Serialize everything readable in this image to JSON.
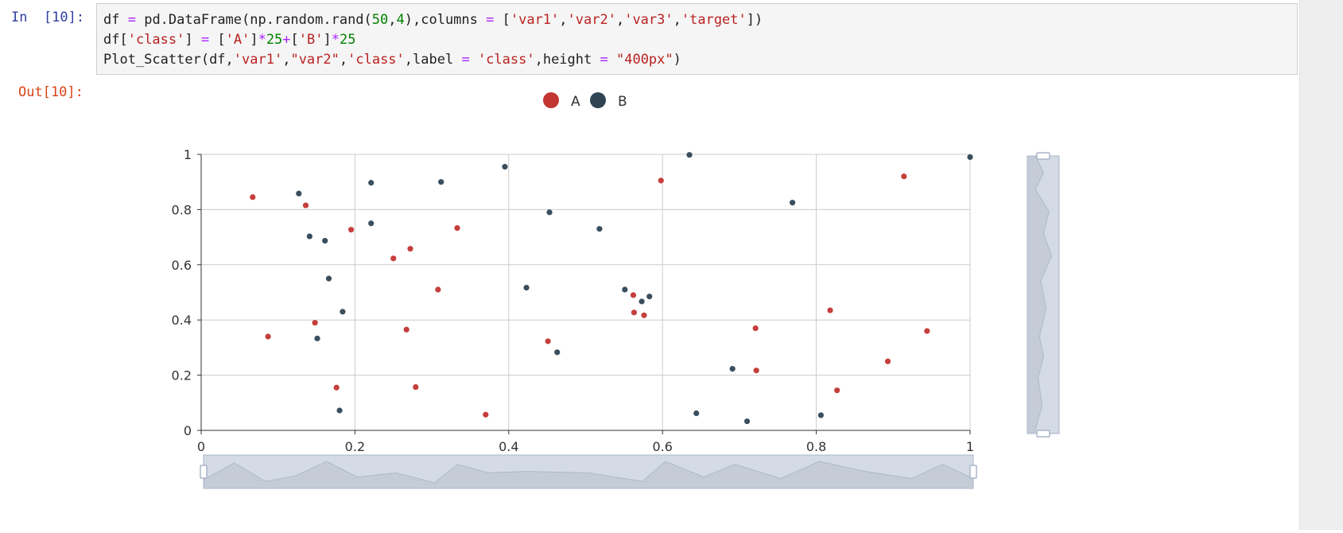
{
  "cell": {
    "in_prompt": "In  [10]:",
    "out_prompt": "Out[10]:",
    "code_lines": [
      [
        {
          "t": "df ",
          "c": "plain"
        },
        {
          "t": "=",
          "c": "op"
        },
        {
          "t": " pd.DataFrame(np.random.rand(",
          "c": "plain"
        },
        {
          "t": "50",
          "c": "num"
        },
        {
          "t": ",",
          "c": "plain"
        },
        {
          "t": "4",
          "c": "num"
        },
        {
          "t": "),columns ",
          "c": "plain"
        },
        {
          "t": "=",
          "c": "op"
        },
        {
          "t": " [",
          "c": "plain"
        },
        {
          "t": "'var1'",
          "c": "str"
        },
        {
          "t": ",",
          "c": "plain"
        },
        {
          "t": "'var2'",
          "c": "str"
        },
        {
          "t": ",",
          "c": "plain"
        },
        {
          "t": "'var3'",
          "c": "str"
        },
        {
          "t": ",",
          "c": "plain"
        },
        {
          "t": "'target'",
          "c": "str"
        },
        {
          "t": "])",
          "c": "plain"
        }
      ],
      [
        {
          "t": "df[",
          "c": "plain"
        },
        {
          "t": "'class'",
          "c": "str"
        },
        {
          "t": "] ",
          "c": "plain"
        },
        {
          "t": "=",
          "c": "op"
        },
        {
          "t": " [",
          "c": "plain"
        },
        {
          "t": "'A'",
          "c": "str"
        },
        {
          "t": "]",
          "c": "plain"
        },
        {
          "t": "*",
          "c": "op"
        },
        {
          "t": "25",
          "c": "num"
        },
        {
          "t": "+",
          "c": "op"
        },
        {
          "t": "[",
          "c": "plain"
        },
        {
          "t": "'B'",
          "c": "str"
        },
        {
          "t": "]",
          "c": "plain"
        },
        {
          "t": "*",
          "c": "op"
        },
        {
          "t": "25",
          "c": "num"
        }
      ],
      [
        {
          "t": "Plot_Scatter",
          "c": "plain"
        },
        {
          "t": "(df,",
          "c": "plain"
        },
        {
          "t": "'var1'",
          "c": "str"
        },
        {
          "t": ",",
          "c": "plain"
        },
        {
          "t": "\"var2\"",
          "c": "str"
        },
        {
          "t": ",",
          "c": "plain"
        },
        {
          "t": "'class'",
          "c": "str"
        },
        {
          "t": ",label ",
          "c": "plain"
        },
        {
          "t": "=",
          "c": "op"
        },
        {
          "t": " ",
          "c": "plain"
        },
        {
          "t": "'class'",
          "c": "str"
        },
        {
          "t": ",height ",
          "c": "plain"
        },
        {
          "t": "=",
          "c": "op"
        },
        {
          "t": " ",
          "c": "plain"
        },
        {
          "t": "\"400px\"",
          "c": "str"
        },
        {
          "t": ")",
          "c": "plain"
        }
      ]
    ]
  },
  "colors": {
    "series_A": "#c23531",
    "series_B": "#2f4554",
    "grid": "#cccccc",
    "axis": "#333333",
    "zoom_fill": "#d4dbe5",
    "zoom_border": "#aab6c7"
  },
  "chart_data": {
    "type": "scatter",
    "legend": {
      "placement": "top-center",
      "items": [
        "A",
        "B"
      ]
    },
    "x_ticks": [
      "0",
      "0.2",
      "0.4",
      "0.6",
      "0.8",
      "1"
    ],
    "y_ticks": [
      "0",
      "0.2",
      "0.4",
      "0.6",
      "0.8",
      "1"
    ],
    "xlim": [
      0,
      1
    ],
    "ylim": [
      0,
      1
    ],
    "grid": true,
    "dataZoom": {
      "x_slider": true,
      "y_slider": true,
      "start": 0,
      "end": 100
    },
    "series": [
      {
        "name": "A",
        "points": [
          [
            0.067,
            0.845
          ],
          [
            0.087,
            0.34
          ],
          [
            0.136,
            0.815
          ],
          [
            0.148,
            0.39
          ],
          [
            0.176,
            0.155
          ],
          [
            0.195,
            0.727
          ],
          [
            0.25,
            0.623
          ],
          [
            0.267,
            0.365
          ],
          [
            0.272,
            0.658
          ],
          [
            0.279,
            0.157
          ],
          [
            0.308,
            0.51
          ],
          [
            0.333,
            0.733
          ],
          [
            0.37,
            0.057
          ],
          [
            0.451,
            0.323
          ],
          [
            0.562,
            0.49
          ],
          [
            0.563,
            0.427
          ],
          [
            0.576,
            0.417
          ],
          [
            0.598,
            0.905
          ],
          [
            0.721,
            0.37
          ],
          [
            0.722,
            0.217
          ],
          [
            0.818,
            0.435
          ],
          [
            0.827,
            0.145
          ],
          [
            0.893,
            0.25
          ],
          [
            0.914,
            0.92
          ],
          [
            0.944,
            0.36
          ]
        ]
      },
      {
        "name": "B",
        "points": [
          [
            0.127,
            0.858
          ],
          [
            0.141,
            0.703
          ],
          [
            0.151,
            0.333
          ],
          [
            0.161,
            0.687
          ],
          [
            0.166,
            0.55
          ],
          [
            0.18,
            0.072
          ],
          [
            0.184,
            0.43
          ],
          [
            0.221,
            0.897
          ],
          [
            0.221,
            0.75
          ],
          [
            0.312,
            0.9
          ],
          [
            0.395,
            0.955
          ],
          [
            0.423,
            0.517
          ],
          [
            0.453,
            0.79
          ],
          [
            0.463,
            0.283
          ],
          [
            0.518,
            0.73
          ],
          [
            0.551,
            0.51
          ],
          [
            0.573,
            0.467
          ],
          [
            0.583,
            0.485
          ],
          [
            0.635,
            0.998
          ],
          [
            0.644,
            0.062
          ],
          [
            0.691,
            0.223
          ],
          [
            0.71,
            0.033
          ],
          [
            0.769,
            0.825
          ],
          [
            0.806,
            0.055
          ],
          [
            1.0,
            0.99
          ]
        ]
      }
    ]
  }
}
